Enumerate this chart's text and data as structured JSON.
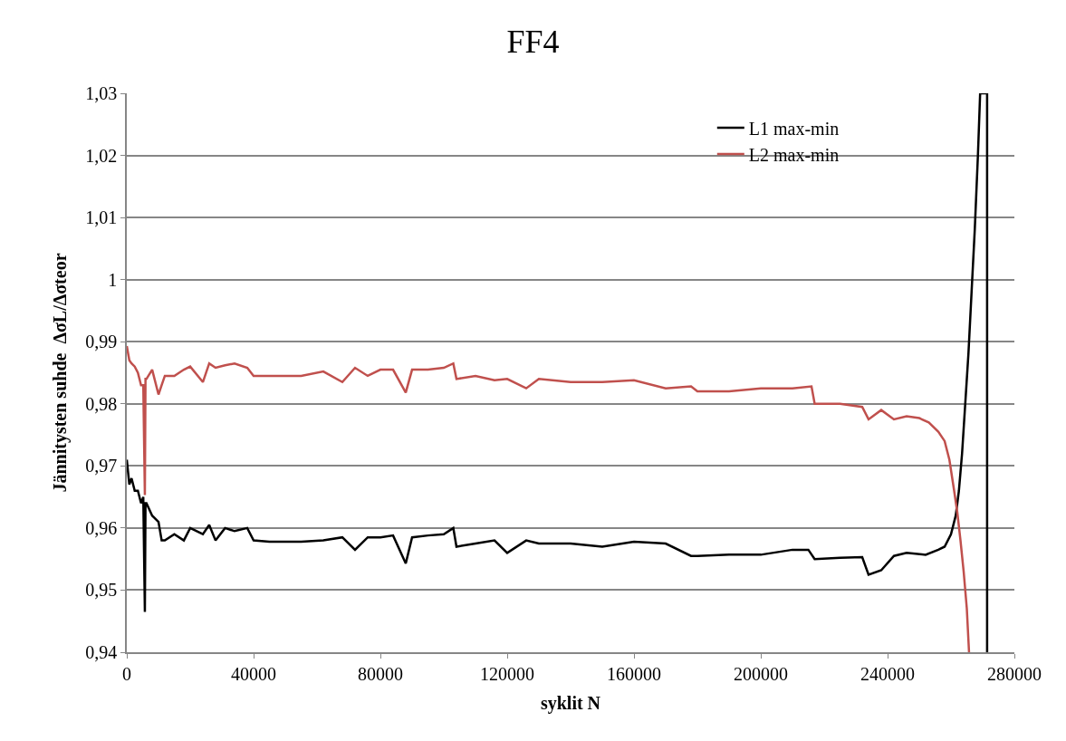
{
  "chart_data": {
    "type": "line",
    "title": "FF4",
    "xlabel": "syklit N",
    "ylabel": "Jännitysten suhde  ΔσL/Δσteor",
    "xlim": [
      0,
      280000
    ],
    "xticks": [
      0,
      40000,
      80000,
      120000,
      160000,
      200000,
      240000,
      280000
    ],
    "ylim": [
      0.94,
      1.03
    ],
    "yticks": [
      {
        "value": 0.94,
        "label": "0,94"
      },
      {
        "value": 0.95,
        "label": "0,95"
      },
      {
        "value": 0.96,
        "label": "0,96"
      },
      {
        "value": 0.97,
        "label": "0,97"
      },
      {
        "value": 0.98,
        "label": "0,98"
      },
      {
        "value": 0.99,
        "label": "0,99"
      },
      {
        "value": 1,
        "label": "1"
      },
      {
        "value": 1.01,
        "label": "1,01"
      },
      {
        "value": 1.02,
        "label": "1,02"
      },
      {
        "value": 1.03,
        "label": "1,03"
      }
    ],
    "grid": "y",
    "legend": "top right",
    "marker": "none",
    "line_style": "solid",
    "series": [
      {
        "name": "L1 max-min",
        "color": "#000000",
        "x": [
          0,
          800,
          1500,
          2500,
          3500,
          4500,
          5200,
          5700,
          5900,
          6200,
          8000,
          10000,
          11000,
          12000,
          15000,
          18000,
          20000,
          24000,
          26000,
          28000,
          31000,
          34000,
          38000,
          40000,
          45000,
          55000,
          62000,
          68000,
          72000,
          76000,
          80000,
          84000,
          88000,
          90000,
          95000,
          100000,
          103000,
          104000,
          110000,
          116000,
          120000,
          126000,
          130000,
          140000,
          150000,
          160000,
          170000,
          178000,
          180000,
          190000,
          200000,
          210000,
          215000,
          217000,
          225000,
          232000,
          234000,
          238000,
          242000,
          246000,
          252000,
          256000,
          258000,
          260000,
          261500,
          262500,
          263500,
          264500,
          265500,
          266500,
          267500,
          268500,
          269200,
          271400,
          271400
        ],
        "values": [
          0.971,
          0.967,
          0.968,
          0.966,
          0.966,
          0.964,
          0.965,
          0.9465,
          0.964,
          0.964,
          0.962,
          0.961,
          0.958,
          0.958,
          0.959,
          0.958,
          0.96,
          0.959,
          0.9605,
          0.958,
          0.96,
          0.9595,
          0.96,
          0.958,
          0.9578,
          0.9578,
          0.958,
          0.9585,
          0.9565,
          0.9585,
          0.9585,
          0.9588,
          0.9543,
          0.9585,
          0.9588,
          0.959,
          0.96,
          0.957,
          0.9575,
          0.958,
          0.956,
          0.958,
          0.9575,
          0.9575,
          0.957,
          0.9578,
          0.9575,
          0.9555,
          0.9555,
          0.9557,
          0.9557,
          0.9565,
          0.9565,
          0.955,
          0.9552,
          0.9553,
          0.9525,
          0.9532,
          0.9555,
          0.956,
          0.9557,
          0.9565,
          0.957,
          0.959,
          0.962,
          0.966,
          0.972,
          0.98,
          0.988,
          0.998,
          1.008,
          1.02,
          1.03,
          1.03,
          0.94
        ]
      },
      {
        "name": "L2 max-min",
        "color": "#c0504d",
        "x": [
          0,
          800,
          1500,
          2500,
          3500,
          4500,
          5200,
          5700,
          5900,
          6200,
          8000,
          10000,
          11000,
          12000,
          15000,
          18000,
          20000,
          24000,
          26000,
          28000,
          31000,
          34000,
          38000,
          40000,
          45000,
          55000,
          62000,
          68000,
          72000,
          76000,
          80000,
          84000,
          88000,
          90000,
          95000,
          100000,
          103000,
          104000,
          110000,
          116000,
          120000,
          126000,
          130000,
          140000,
          150000,
          160000,
          170000,
          178000,
          180000,
          190000,
          200000,
          210000,
          216000,
          217000,
          225000,
          232000,
          234000,
          238000,
          242000,
          246000,
          250000,
          253000,
          256000,
          258000,
          259500,
          261000,
          262000,
          263000,
          264000,
          265000,
          265700
        ],
        "values": [
          0.9893,
          0.987,
          0.9865,
          0.986,
          0.985,
          0.983,
          0.983,
          0.9653,
          0.984,
          0.984,
          0.9855,
          0.9815,
          0.983,
          0.9845,
          0.9845,
          0.9855,
          0.986,
          0.9835,
          0.9865,
          0.9858,
          0.9862,
          0.9865,
          0.9858,
          0.9845,
          0.9845,
          0.9845,
          0.9852,
          0.9835,
          0.9858,
          0.9845,
          0.9855,
          0.9855,
          0.9818,
          0.9855,
          0.9855,
          0.9858,
          0.9865,
          0.984,
          0.9845,
          0.9838,
          0.984,
          0.9825,
          0.984,
          0.9835,
          0.9835,
          0.9838,
          0.9825,
          0.9828,
          0.982,
          0.982,
          0.9825,
          0.9825,
          0.9828,
          0.98,
          0.98,
          0.9795,
          0.9775,
          0.979,
          0.9775,
          0.978,
          0.9777,
          0.977,
          0.9755,
          0.974,
          0.971,
          0.966,
          0.9625,
          0.958,
          0.953,
          0.947,
          0.94
        ]
      }
    ]
  }
}
